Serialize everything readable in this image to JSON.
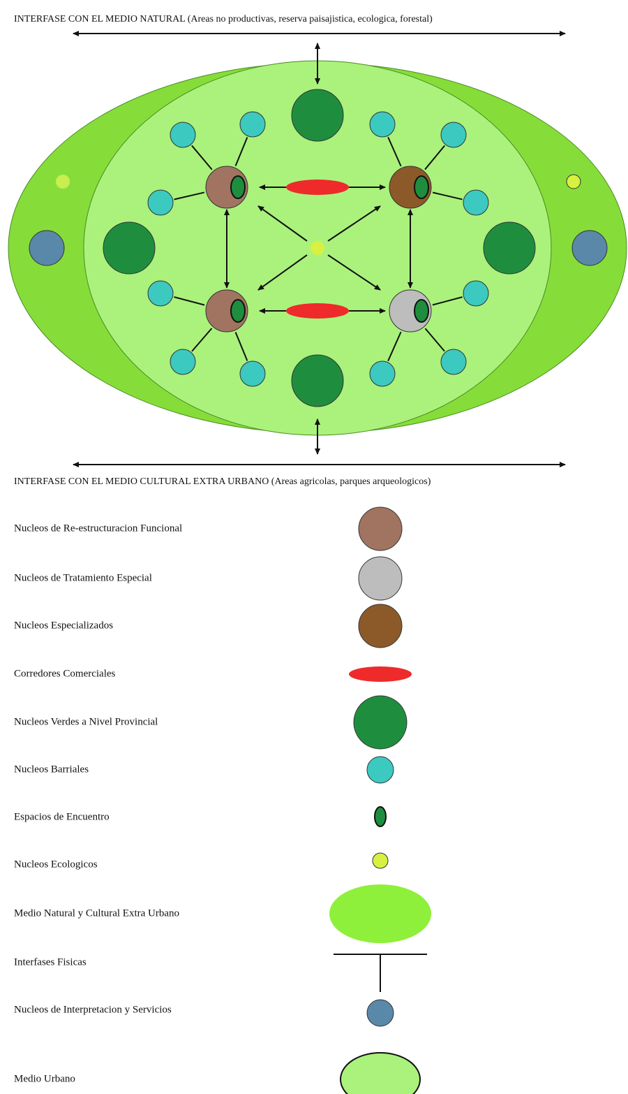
{
  "top_label": "INTERFASE CON EL MEDIO NATURAL (Areas no productivas, reserva paisajistica, ecologica, forestal)",
  "bottom_label": "INTERFASE CON EL MEDIO CULTURAL EXTRA URBANO (Areas agricolas, parques arqueologicos)",
  "legend": [
    "Nucleos de Re-estructuracion Funcional",
    "Nucleos de Tratamiento Especial",
    "Nucleos Especializados",
    "Corredores Comerciales",
    "Nucleos Verdes a Nivel Provincial",
    "Nucleos Barriales",
    "Espacios de Encuentro",
    "Nucleos Ecologicos",
    "Medio Natural y Cultural Extra Urbano",
    "Interfases Fisicas",
    "Nucleos de Interpretacion y Servicios",
    "Medio Urbano"
  ]
}
